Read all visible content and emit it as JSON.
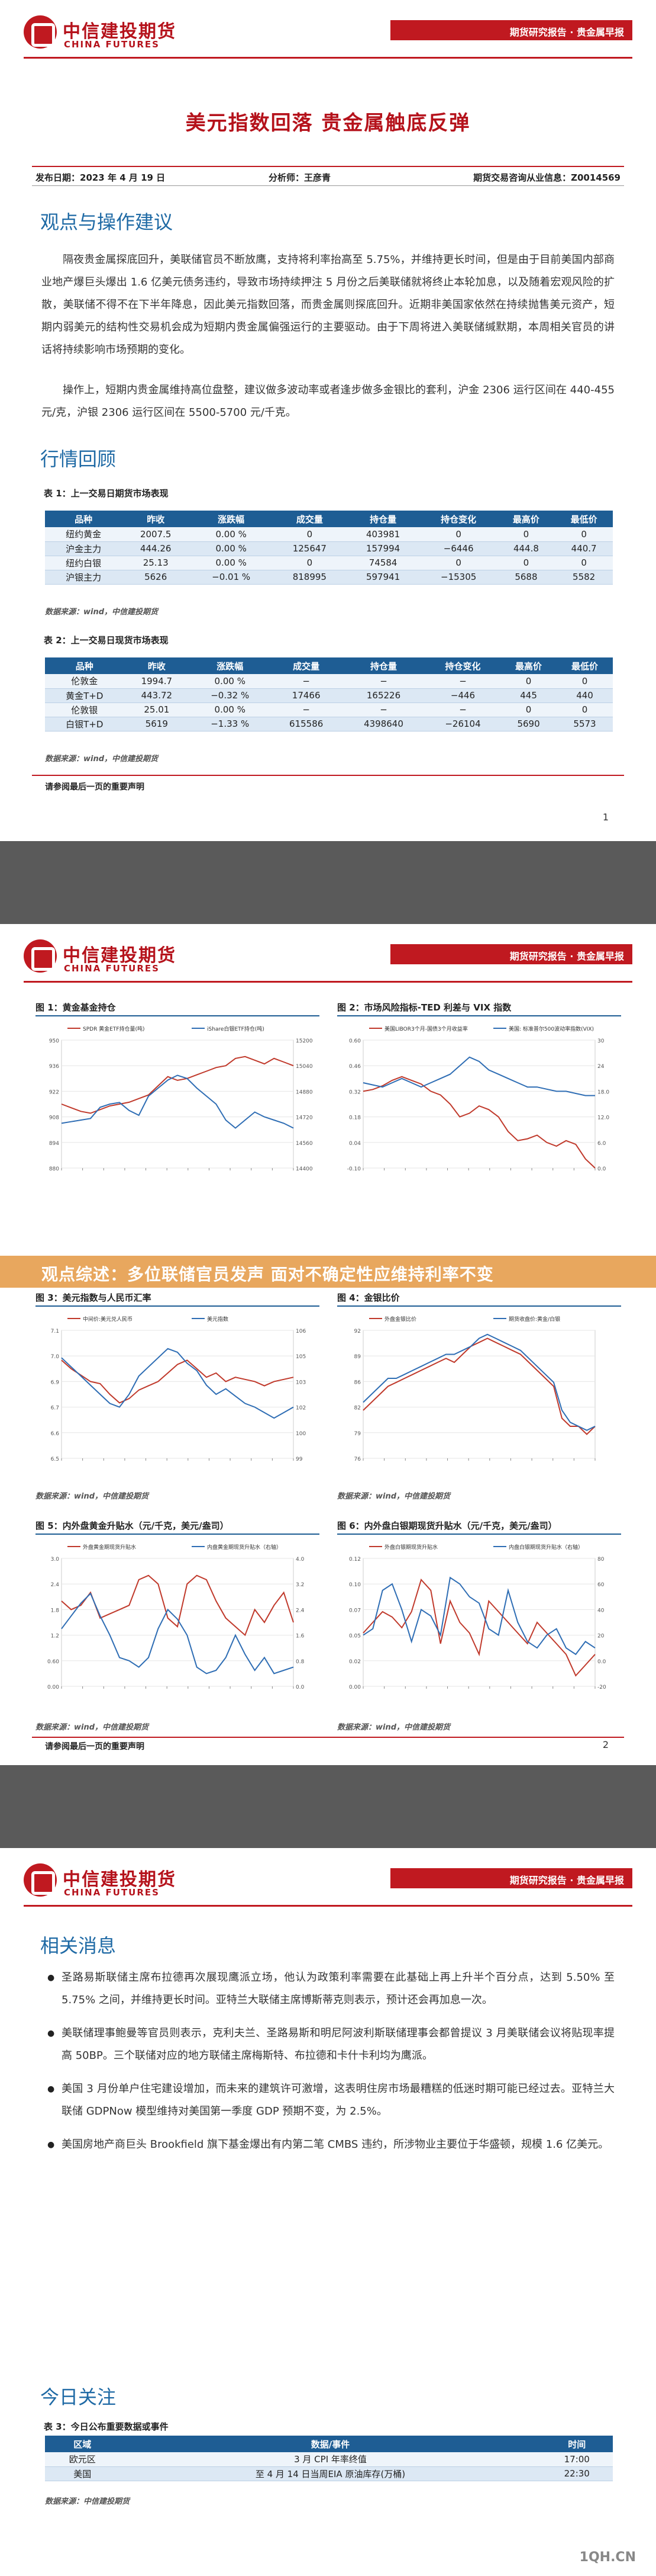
{
  "header": {
    "logo_cn": "中信建投期货",
    "logo_en": "CHINA FUTURES",
    "bar_text": "期货研究报告 · 贵金属早报"
  },
  "report": {
    "title": "美元指数回落 贵金属触底反弹",
    "publish_date": "发布日期：2023 年 4 月 19 日",
    "analyst": "分析师：王彦青",
    "license": "期货交易咨询从业信息：Z0014569"
  },
  "sections": {
    "viewpoint_heading": "观点与操作建议",
    "viewpoint_para1": "隔夜贵金属探底回升，美联储官员不断放鹰，支持将利率抬高至 5.75%，并维持更长时间，但是由于目前美国内部商业地产爆巨头爆出 1.6 亿美元债务违约，导致市场持续押注 5 月份之后美联储就将终止本轮加息，以及随着宏观风险的扩散，美联储不得不在下半年降息，因此美元指数回落，而贵金属则探底回升。近期非美国家依然在持续抛售美元资产，短期内弱美元的结构性交易机会成为短期内贵金属偏强运行的主要驱动。由于下周将进入美联储缄默期，本周相关官员的讲话将持续影响市场预期的变化。",
    "viewpoint_para2": "操作上，短期内贵金属维持高位盘整，建议做多波动率或者逢步做多金银比的套利，沪金 2306 运行区间在 440-455 元/克，沪银 2306 运行区间在 5500-5700 元/千克。",
    "market_heading": "行情回顾",
    "news_heading": "相关消息",
    "focus_heading": "今日关注"
  },
  "table1": {
    "caption": "表 1：上一交易日期货市场表现",
    "headers": [
      "品种",
      "昨收",
      "涨跌幅",
      "成交量",
      "持仓量",
      "持仓变化",
      "最高价",
      "最低价"
    ],
    "rows": [
      [
        "纽约黄金",
        "2007.5",
        "0.00 %",
        "0",
        "403981",
        "0",
        "0",
        "0"
      ],
      [
        "沪金主力",
        "444.26",
        "0.00 %",
        "125647",
        "157994",
        "−6446",
        "444.8",
        "440.7"
      ],
      [
        "纽约白银",
        "25.13",
        "0.00 %",
        "0",
        "74584",
        "0",
        "0",
        "0"
      ],
      [
        "沪银主力",
        "5626",
        "−0.01 %",
        "818995",
        "597941",
        "−15305",
        "5688",
        "5582"
      ]
    ],
    "source": "数据来源：wind，中信建投期货"
  },
  "table2": {
    "caption": "表 2：上一交易日现货市场表现",
    "headers": [
      "品种",
      "昨收",
      "涨跌幅",
      "成交量",
      "持仓量",
      "持仓变化",
      "最高价",
      "最低价"
    ],
    "rows": [
      [
        "伦敦金",
        "1994.7",
        "0.00 %",
        "−",
        "−",
        "−",
        "0",
        "0"
      ],
      [
        "黄金T+D",
        "443.72",
        "−0.32 %",
        "17466",
        "165226",
        "−446",
        "445",
        "440"
      ],
      [
        "伦敦银",
        "25.01",
        "0.00 %",
        "−",
        "−",
        "−",
        "0",
        "0"
      ],
      [
        "白银T+D",
        "5619",
        "−1.33 %",
        "615586",
        "4398640",
        "−26104",
        "5690",
        "5573"
      ]
    ],
    "source": "数据来源：wind，中信建投期货"
  },
  "page_footer": {
    "note": "请参阅最后一页的重要声明",
    "page1": "1",
    "page2": "2"
  },
  "charts": {
    "c1": {
      "title": "图 1：黄金基金持仓",
      "legend": [
        "SPDR 黄金ETF持仓量(吨)",
        "iShare白银ETF持仓(吨)"
      ]
    },
    "c2": {
      "title": "图 2：市场风险指标-TED 利差与 VIX 指数",
      "legend": [
        "美国LIBOR3个月-国债3个月收益率",
        "美国: 标准普尔500波动率指数(VIX)"
      ]
    },
    "c3": {
      "title": "图 3：美元指数与人民币汇率",
      "legend": [
        "中间价:美元兑人民币",
        "美元指数"
      ]
    },
    "c4": {
      "title": "图 4：金银比价",
      "legend": [
        "外盘金银比价",
        "期货收盘价:黄金/白银"
      ]
    },
    "c5": {
      "title": "图 5：内外盘黄金升贴水（元/千克，美元/盎司）",
      "legend": [
        "外盘黄金期现货升贴水",
        "内盘黄金期现货升贴水（右轴）"
      ]
    },
    "c6": {
      "title": "图 6：内外盘白银期现货升贴水（元/千克，美元/盎司）",
      "legend": [
        "外盘白银期现货升贴水",
        "内盘白银期现货升贴水（右轴）"
      ]
    },
    "source": "数据来源：wind，中信建投期货"
  },
  "banner": {
    "text": "观点综述：多位联储官员发声 面对不确定性应维持利率不变"
  },
  "news": [
    "圣路易斯联储主席布拉德再次展现鹰派立场，他认为政策利率需要在此基础上再上升半个百分点，达到 5.50% 至 5.75% 之间，并维持更长时间。亚特兰大联储主席博斯蒂克则表示，预计还会再加息一次。",
    "美联储理事鲍曼等官员则表示，克利夫兰、圣路易斯和明尼阿波利斯联储理事会都曾提议 3 月美联储会议将贴现率提高 50BP。三个联储对应的地方联储主席梅斯特、布拉德和卡什卡利均为鹰派。",
    "美国 3 月份单户住宅建设增加，而未来的建筑许可激增，这表明住房市场最糟糕的低迷时期可能已经过去。亚特兰大联储 GDPNow 模型维持对美国第一季度 GDP 预期不变，为 2.5%。",
    "美国房地产商巨头 Brookfield 旗下基金爆出有内第二笔 CMBS 违约，所涉物业主要位于华盛顿，规模 1.6 亿美元。"
  ],
  "table3": {
    "caption": "表 3：今日公布重要数据或事件",
    "headers": [
      "区域",
      "数据/事件",
      "时间"
    ],
    "rows": [
      [
        "欧元区",
        "3 月 CPI 年率终值",
        "17:00"
      ],
      [
        "美国",
        "至 4 月 14 日当周EIA 原油库存(万桶)",
        "22:30"
      ]
    ],
    "source": "数据来源：中信建投期货"
  },
  "watermark": "1QH.CN",
  "chart_data": [
    {
      "type": "line",
      "title": "图 1：黄金基金持仓",
      "series": [
        {
          "name": "SPDR 黄金ETF持仓量(吨)",
          "values": [
            915,
            913,
            911,
            910,
            912,
            914,
            915,
            916,
            918,
            920,
            925,
            930,
            928,
            929,
            931,
            933,
            935,
            936,
            940,
            941,
            939,
            937,
            940,
            938,
            936
          ]
        },
        {
          "name": "iShare白银ETF持仓(吨)",
          "values": [
            14680,
            14690,
            14700,
            14710,
            14780,
            14800,
            14810,
            14760,
            14730,
            14850,
            14900,
            14950,
            14980,
            14960,
            14900,
            14850,
            14800,
            14700,
            14650,
            14700,
            14750,
            14720,
            14700,
            14680,
            14650
          ]
        }
      ],
      "ylim": [
        880,
        950
      ],
      "y2lim": [
        14400,
        15200
      ]
    },
    {
      "type": "line",
      "title": "图 2：市场风险指标-TED 利差与 VIX 指数",
      "series": [
        {
          "name": "美国LIBOR3个月-国债3个月收益率",
          "values": [
            0.32,
            0.33,
            0.35,
            0.38,
            0.4,
            0.38,
            0.36,
            0.32,
            0.3,
            0.25,
            0.18,
            0.2,
            0.24,
            0.22,
            0.18,
            0.1,
            0.05,
            0.06,
            0.08,
            0.04,
            0.02,
            0.05,
            0.03,
            -0.05,
            -0.1
          ]
        },
        {
          "name": "美国: 标准普尔500波动率指数(VIX)",
          "values": [
            20,
            19.5,
            19,
            20,
            21,
            20,
            19,
            20,
            21,
            22,
            24,
            26,
            25,
            23,
            22,
            21,
            20,
            19,
            19,
            18.5,
            18,
            18,
            17.5,
            17,
            17
          ]
        }
      ],
      "ylim": [
        -0.1,
        0.6
      ],
      "y2lim": [
        0,
        30
      ]
    },
    {
      "type": "line",
      "title": "图 3：美元指数与人民币汇率",
      "series": [
        {
          "name": "中间价:美元兑人民币",
          "values": [
            6.96,
            6.92,
            6.89,
            6.86,
            6.85,
            6.8,
            6.76,
            6.78,
            6.82,
            6.84,
            6.86,
            6.9,
            6.94,
            6.96,
            6.92,
            6.88,
            6.9,
            6.86,
            6.88,
            6.87,
            6.86,
            6.84,
            6.86,
            6.87,
            6.88
          ]
        },
        {
          "name": "美元指数",
          "values": [
            104.5,
            104.0,
            103.5,
            103.0,
            102.5,
            102.0,
            101.8,
            102.5,
            103.5,
            104.0,
            104.5,
            105.0,
            104.8,
            104.2,
            103.8,
            103.0,
            102.5,
            102.8,
            102.4,
            102.0,
            101.8,
            101.5,
            101.2,
            101.5,
            101.8
          ]
        }
      ],
      "ylim": [
        6.5,
        7.1
      ],
      "y2lim": [
        99,
        106
      ]
    },
    {
      "type": "line",
      "title": "图 4：金银比价",
      "series": [
        {
          "name": "外盘金银比价",
          "values": [
            82,
            83,
            84,
            85,
            85.5,
            86,
            86.5,
            87,
            87.5,
            88,
            88.5,
            88,
            89,
            90,
            90.5,
            91,
            90.5,
            90,
            89.5,
            89,
            88,
            87,
            86,
            85,
            81,
            80,
            80,
            79,
            80
          ]
        },
        {
          "name": "期货收盘价:黄金/白银",
          "values": [
            83,
            84,
            85,
            86,
            86,
            86.5,
            87,
            87.5,
            88,
            88.5,
            89,
            89,
            89.5,
            90,
            91,
            91.5,
            91,
            90.5,
            90,
            89.5,
            88.5,
            87.5,
            86.5,
            85.5,
            82,
            80.5,
            80,
            79.5,
            80
          ]
        }
      ],
      "ylim": [
        76,
        92
      ]
    },
    {
      "type": "line",
      "title": "图 5：内外盘黄金升贴水（元/千克，美元/盎司）",
      "series": [
        {
          "name": "外盘黄金期现货升贴水",
          "values": [
            2.0,
            1.8,
            1.9,
            2.2,
            1.6,
            1.7,
            1.8,
            1.9,
            2.5,
            2.6,
            2.4,
            1.6,
            1.4,
            2.4,
            2.6,
            2.5,
            2.0,
            1.6,
            1.4,
            1.2,
            1.8,
            1.5,
            1.9,
            2.2,
            1.5
          ]
        },
        {
          "name": "内盘黄金期现货升贴水（右轴）",
          "values": [
            1.8,
            2.2,
            2.6,
            2.9,
            2.2,
            1.6,
            0.9,
            0.8,
            0.6,
            0.9,
            1.8,
            2.4,
            2.1,
            1.6,
            0.6,
            0.4,
            0.5,
            0.9,
            1.6,
            1.0,
            0.5,
            0.9,
            0.4,
            0.5,
            0.6
          ]
        }
      ],
      "ylim": [
        0,
        3.0
      ],
      "y2lim": [
        0,
        4.0
      ]
    },
    {
      "type": "line",
      "title": "图 6：内外盘白银期现货升贴水（元/千克，美元/盎司）",
      "series": [
        {
          "name": "外盘白银期现货升贴水",
          "values": [
            0.05,
            0.06,
            0.07,
            0.065,
            0.055,
            0.07,
            0.1,
            0.09,
            0.04,
            0.08,
            0.06,
            0.05,
            0.03,
            0.08,
            0.07,
            0.06,
            0.05,
            0.04,
            0.06,
            0.05,
            0.04,
            0.03,
            0.01,
            0.02,
            0.03
          ]
        },
        {
          "name": "内盘白银期现货升贴水（右轴）",
          "values": [
            20,
            25,
            55,
            60,
            40,
            15,
            40,
            35,
            20,
            65,
            60,
            50,
            45,
            25,
            20,
            55,
            30,
            15,
            10,
            20,
            25,
            10,
            5,
            15,
            10
          ]
        }
      ],
      "ylim": [
        0,
        0.12
      ],
      "y2lim": [
        -20,
        80
      ]
    }
  ]
}
